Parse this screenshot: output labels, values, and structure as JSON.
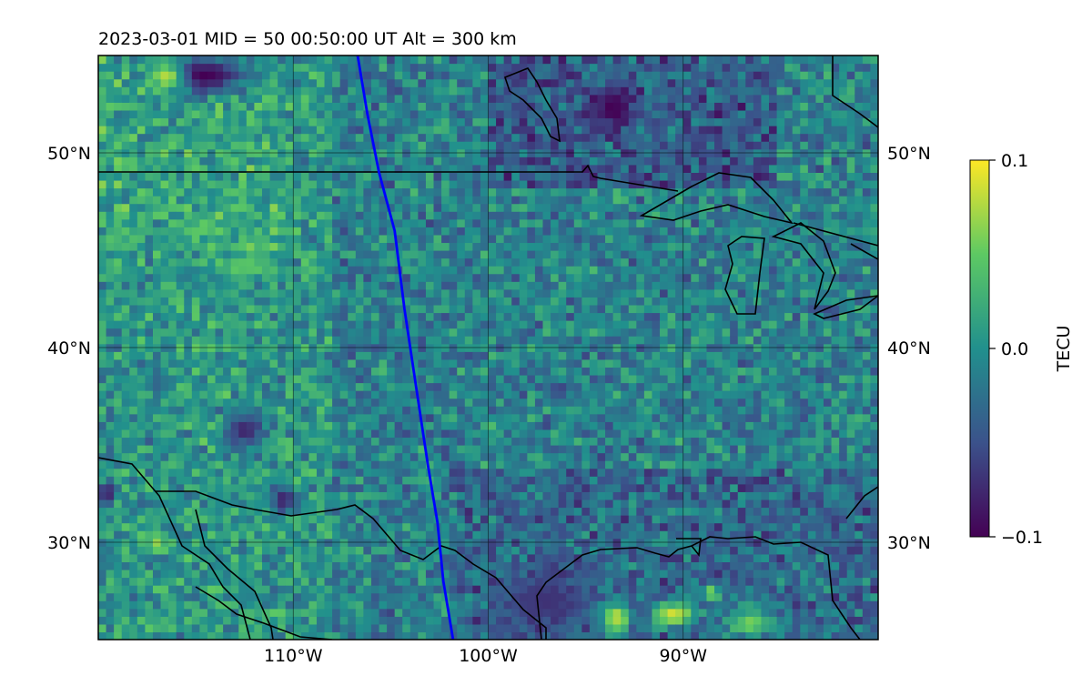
{
  "chart_data": {
    "type": "heatmap",
    "title": "2023-03-01  MID =  50    00:50:00  UT  Alt = 300 km",
    "xlim": [
      -120,
      -80
    ],
    "ylim": [
      25,
      55
    ],
    "x_ticks": [
      -110,
      -100,
      -90
    ],
    "x_tick_labels": [
      "110°W",
      "100°W",
      "90°W"
    ],
    "y_ticks": [
      30,
      40,
      50
    ],
    "y_tick_labels": [
      "30°N",
      "40°N",
      "50°N"
    ],
    "grid": true,
    "colormap": "viridis",
    "colorbar": {
      "label": "TECU",
      "range": [
        -0.1,
        0.1
      ],
      "ticks": [
        0.1,
        0.0,
        -0.1
      ],
      "tick_labels": [
        "0.1",
        "0.0",
        "−0.1"
      ]
    },
    "blue_track": {
      "color": "#0000ff",
      "points": [
        [
          -106.7,
          55
        ],
        [
          -106.2,
          52
        ],
        [
          -105.6,
          49
        ],
        [
          -104.8,
          46
        ],
        [
          -104.3,
          42
        ],
        [
          -103.7,
          38
        ],
        [
          -103.1,
          34
        ],
        [
          -102.6,
          31
        ],
        [
          -102.3,
          28
        ],
        [
          -101.8,
          25
        ]
      ]
    },
    "anomalies": [
      {
        "lon": -114.5,
        "lat": 54.0,
        "rx": 2.3,
        "ry": 1.0,
        "value": -0.1
      },
      {
        "lon": -93.6,
        "lat": 52.3,
        "rx": 1.2,
        "ry": 1.2,
        "value": -0.1
      },
      {
        "lon": -116.5,
        "lat": 53.9,
        "rx": 0.9,
        "ry": 0.7,
        "value": 0.08
      },
      {
        "lon": -93.5,
        "lat": 26.2,
        "rx": 0.8,
        "ry": 0.8,
        "value": 0.1
      },
      {
        "lon": -90.5,
        "lat": 26.3,
        "rx": 1.2,
        "ry": 0.7,
        "value": 0.09
      },
      {
        "lon": -86.5,
        "lat": 25.9,
        "rx": 1.2,
        "ry": 0.8,
        "value": 0.06
      },
      {
        "lon": -88.5,
        "lat": 27.4,
        "rx": 0.5,
        "ry": 0.4,
        "value": 0.08
      },
      {
        "lon": -112.5,
        "lat": 44.2,
        "rx": 1.5,
        "ry": 0.6,
        "value": 0.05
      },
      {
        "lon": -114.7,
        "lat": 46.1,
        "rx": 1.4,
        "ry": 0.5,
        "value": 0.05
      },
      {
        "lon": -117.0,
        "lat": 29.9,
        "rx": 0.6,
        "ry": 0.5,
        "value": 0.07
      },
      {
        "lon": -112.5,
        "lat": 35.8,
        "rx": 1.0,
        "ry": 0.8,
        "value": -0.08
      },
      {
        "lon": -110.5,
        "lat": 32.2,
        "rx": 0.8,
        "ry": 0.8,
        "value": -0.08
      },
      {
        "lon": -97.0,
        "lat": 27.0,
        "rx": 2.6,
        "ry": 1.8,
        "value": -0.07
      },
      {
        "lon": -119.6,
        "lat": 32.5,
        "rx": 0.5,
        "ry": 0.6,
        "value": -0.09
      }
    ]
  }
}
